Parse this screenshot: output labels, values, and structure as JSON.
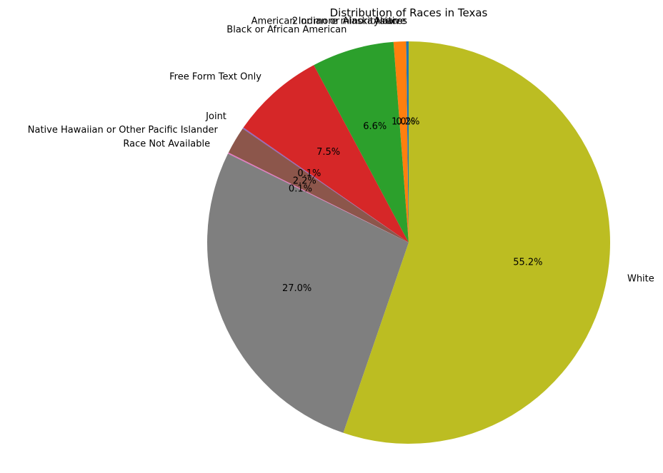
{
  "chart_data": {
    "type": "pie",
    "title": "Distribution of Races in Texas",
    "start_angle_deg": 90,
    "direction": "counterclockwise",
    "slices": [
      {
        "label": "2 or more minority races",
        "value": 0.2,
        "pct_label": "0.2%",
        "color": "#1f77b4"
      },
      {
        "label": "American Indian or Alaska Native",
        "value": 0.0,
        "pct_label": "",
        "color": "#1f77b4"
      },
      {
        "label": "Asian",
        "value": 1.0,
        "pct_label": "1.0%",
        "color": "#ff7f0e"
      },
      {
        "label": "Black or African American",
        "value": 6.6,
        "pct_label": "6.6%",
        "color": "#2ca02c"
      },
      {
        "label": "Free Form Text Only",
        "value": 7.5,
        "pct_label": "7.5%",
        "color": "#d62728"
      },
      {
        "label": "Joint",
        "value": 0.1,
        "pct_label": "0.1%",
        "color": "#9467bd"
      },
      {
        "label": "Native Hawaiian or Other Pacific Islander",
        "value": 2.2,
        "pct_label": "2.2%",
        "color": "#8c564b"
      },
      {
        "label": "Race Not Available",
        "value": 0.1,
        "pct_label": "0.1%",
        "color": "#e377c2"
      },
      {
        "label": "",
        "value": 27.0,
        "pct_label": "27.0%",
        "color": "#7f7f7f"
      },
      {
        "label": "White",
        "value": 55.2,
        "pct_label": "55.2%",
        "color": "#bcbd22"
      }
    ]
  }
}
